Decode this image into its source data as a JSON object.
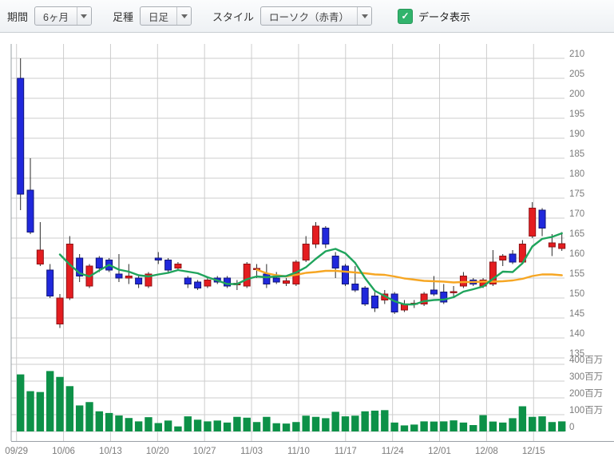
{
  "toolbar": {
    "period": {
      "label": "期間",
      "value": "6ヶ月"
    },
    "bar_type": {
      "label": "足種",
      "value": "日足"
    },
    "style": {
      "label": "スタイル",
      "value": "ローソク（赤青）"
    },
    "data_display": {
      "label": "データ表示",
      "checked": true,
      "check_glyph": "✓"
    }
  },
  "chart_data": {
    "type": "candlestick",
    "x_labels": [
      "09/29",
      "10/06",
      "10/13",
      "10/20",
      "10/27",
      "11/03",
      "11/10",
      "11/17",
      "11/24",
      "12/01",
      "12/08",
      "12/15"
    ],
    "price_axis": {
      "side": "right",
      "ticks": [
        210,
        205,
        200,
        195,
        190,
        185,
        180,
        175,
        170,
        165,
        160,
        155,
        150,
        145,
        140,
        135
      ],
      "range": [
        133,
        213
      ]
    },
    "volume_axis": {
      "unit": "百万",
      "ticks": [
        {
          "label": "400百万",
          "value": 400
        },
        {
          "label": "300百万",
          "value": 300
        },
        {
          "label": "200百万",
          "value": 200
        },
        {
          "label": "100百万",
          "value": 100
        },
        {
          "label": "0",
          "value": 0
        }
      ]
    },
    "legend": {
      "ma_short": "short moving average (green)",
      "ma_long": "long moving average (orange)"
    },
    "candles_format": [
      "open",
      "high",
      "low",
      "close",
      "volume_millions"
    ],
    "candles": [
      [
        205,
        210,
        172,
        176,
        340
      ],
      [
        177,
        185,
        166,
        166.5,
        240
      ],
      [
        158.5,
        169,
        158,
        162,
        235
      ],
      [
        157,
        158.5,
        150,
        150.5,
        360
      ],
      [
        143.5,
        151,
        142.5,
        150,
        325
      ],
      [
        150,
        165.5,
        149.5,
        163.5,
        270
      ],
      [
        160,
        161,
        154,
        155.5,
        155
      ],
      [
        153,
        158.5,
        152.5,
        158,
        175
      ],
      [
        160,
        160.5,
        156.5,
        157.5,
        120
      ],
      [
        159.5,
        160,
        156.5,
        157,
        110
      ],
      [
        156,
        161,
        154,
        155,
        95
      ],
      [
        155,
        158.5,
        153.5,
        155.5,
        80
      ],
      [
        155,
        155.5,
        152.5,
        153.5,
        60
      ],
      [
        153,
        156.5,
        152.5,
        156,
        85
      ],
      [
        160,
        161.5,
        158.5,
        159.5,
        50
      ],
      [
        159.5,
        160,
        156.5,
        157,
        65
      ],
      [
        157.5,
        159,
        157,
        158.5,
        30
      ],
      [
        155,
        155.5,
        152.5,
        153.5,
        90
      ],
      [
        154,
        154.5,
        152,
        152.5,
        70
      ],
      [
        153,
        155,
        152.5,
        154.5,
        60
      ],
      [
        155,
        155.5,
        153.5,
        154,
        65
      ],
      [
        155,
        155.5,
        152.5,
        153,
        53
      ],
      [
        153.3,
        154.5,
        152,
        153.7,
        87
      ],
      [
        153,
        159,
        152.5,
        158.5,
        82
      ],
      [
        157.2,
        158.5,
        155,
        157.4,
        56
      ],
      [
        156,
        158.5,
        152.5,
        153.5,
        87
      ],
      [
        155,
        156.5,
        153.5,
        154,
        49
      ],
      [
        153.7,
        155,
        153,
        154.3,
        47
      ],
      [
        153.5,
        159.5,
        153,
        159,
        56
      ],
      [
        159.5,
        165.5,
        159,
        163.5,
        94
      ],
      [
        163.5,
        169,
        162.5,
        168,
        87
      ],
      [
        167.5,
        168,
        162.5,
        163.5,
        79
      ],
      [
        160.5,
        161.5,
        155,
        157.5,
        117
      ],
      [
        158,
        158.5,
        153,
        153.5,
        90
      ],
      [
        153.5,
        158,
        151.5,
        152,
        94
      ],
      [
        152.5,
        153,
        148,
        148.5,
        120
      ],
      [
        150.5,
        151.5,
        146.5,
        147.5,
        124
      ],
      [
        149.5,
        152,
        148.5,
        151,
        127
      ],
      [
        151,
        151.5,
        146,
        146.5,
        53
      ],
      [
        147,
        149.5,
        146.5,
        148.5,
        36
      ],
      [
        148.5,
        149.5,
        147.5,
        148.7,
        41
      ],
      [
        148.5,
        151.5,
        148,
        151,
        60
      ],
      [
        152,
        155.5,
        150.5,
        151,
        59
      ],
      [
        151.5,
        153.5,
        148.5,
        149,
        60
      ],
      [
        151.4,
        153,
        150,
        151.6,
        66
      ],
      [
        153,
        156.5,
        152.5,
        155.5,
        53
      ],
      [
        154.5,
        155,
        153,
        153.5,
        38
      ],
      [
        153,
        155,
        152.5,
        154.5,
        97
      ],
      [
        153.5,
        162,
        153,
        159,
        59
      ],
      [
        159.5,
        161,
        158,
        160.5,
        53
      ],
      [
        161,
        162,
        158.5,
        159,
        79
      ],
      [
        159,
        164.5,
        158.5,
        163.5,
        150
      ],
      [
        165.5,
        174,
        165,
        172.5,
        87
      ],
      [
        172,
        172.5,
        165.5,
        167.5,
        90
      ],
      [
        162.8,
        166,
        160.5,
        163.8,
        56
      ],
      [
        162.4,
        166.5,
        161.8,
        163.6,
        60
      ]
    ],
    "ma_short": {
      "start_index": 5,
      "values": [
        160.9,
        158.4,
        156.2,
        155.4,
        156.9,
        158.3,
        157.1,
        156.6,
        155.7,
        155.4,
        155.9,
        156.3,
        157.0,
        156.6,
        156.2,
        155.2,
        154.4,
        153.5,
        153.5,
        154.7,
        155.4,
        155.2,
        155.4,
        155.5,
        156.4,
        157.7,
        159.8,
        161.7,
        162.3,
        161.2,
        158.8,
        155.0,
        151.8,
        150.5,
        149.2,
        148.4,
        148.4,
        149.2,
        149.5,
        149.6,
        150.2,
        151.6,
        152.2,
        152.9,
        154.8,
        156.6,
        156.5,
        158.7,
        162.9,
        164.8,
        165.3,
        166.2
      ]
    },
    "ma_long": {
      "start_index": 25,
      "values": [
        157.1,
        156.2,
        155.7,
        155.4,
        155.8,
        156.3,
        156.5,
        156.8,
        156.8,
        156.6,
        156.4,
        156.2,
        155.9,
        155.8,
        155.4,
        154.9,
        154.6,
        154.3,
        154.2,
        154.1,
        153.9,
        154.0,
        154.0,
        154.1,
        154.1,
        154.2,
        154.4,
        154.8,
        155.5,
        155.9,
        155.9,
        155.7
      ]
    },
    "colors": {
      "up": "#e41d20",
      "up_border": "#8f1114",
      "down": "#2028dc",
      "down_border": "#101578",
      "wick": "#2b2b2b",
      "volume": "#0d9148",
      "ma_short": "#1fa45c",
      "ma_long": "#f6a623",
      "grid": "#cdcdcd",
      "spine": "#9aa0a6",
      "axis_text": "#7b7b7b"
    }
  }
}
